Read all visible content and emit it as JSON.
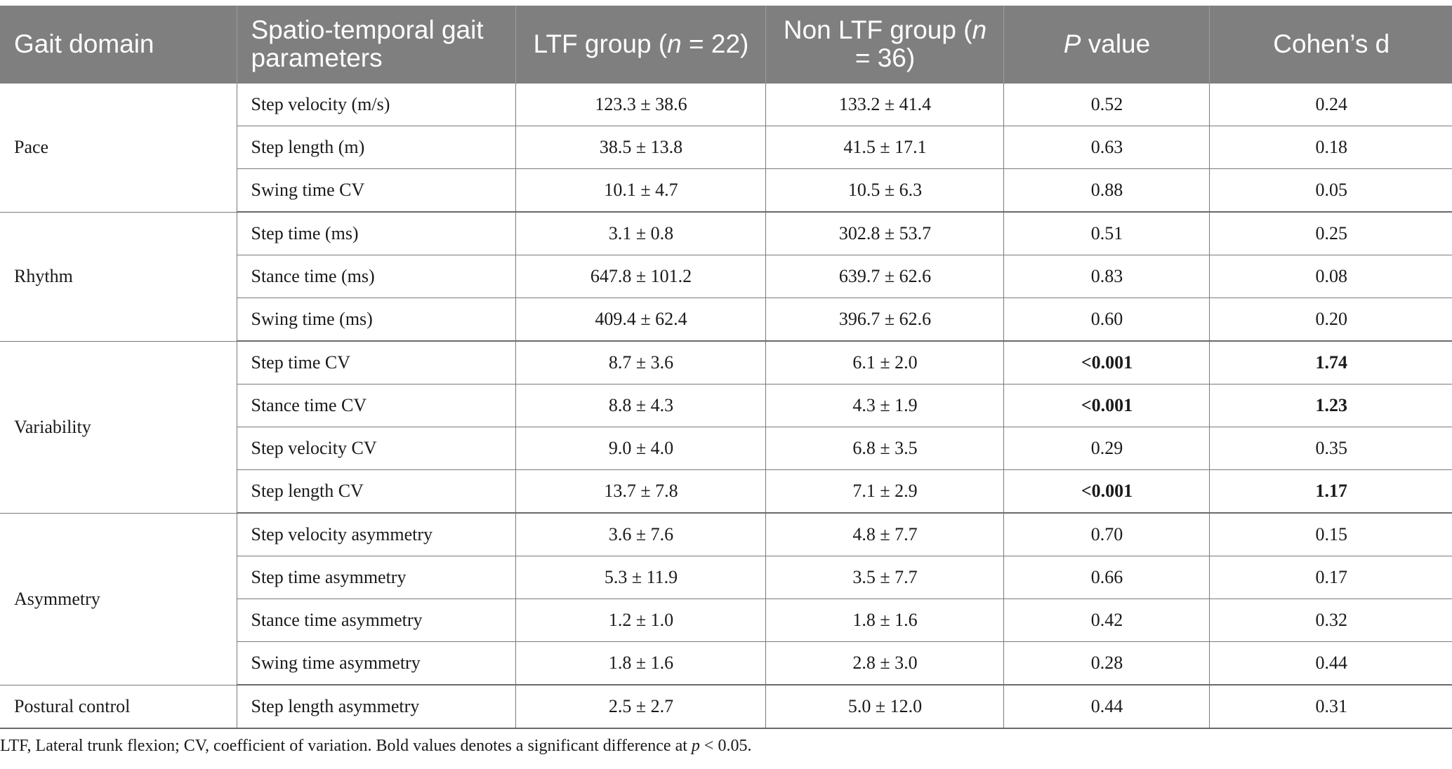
{
  "headers": {
    "domain": "Gait domain",
    "param": "Spatio-temporal gait parameters",
    "ltf_prefix": "LTF group (",
    "ltf_n": "n",
    "ltf_suffix": " = 22)",
    "non_prefix": "Non LTF group (",
    "non_n": "n",
    "non_suffix": " = 36)",
    "p_italic": "P",
    "p_rest": " value",
    "cohen": "Cohen’s d"
  },
  "domains": {
    "pace": "Pace",
    "rhythm": "Rhythm",
    "variability": "Variability",
    "asymmetry": "Asymmetry",
    "postural": "Postural control"
  },
  "rows": [
    {
      "param": "Step velocity (m/s)",
      "ltf": "123.3 ± 38.6",
      "non": "133.2 ± 41.4",
      "p": "0.52",
      "d": "0.24"
    },
    {
      "param": "Step length (m)",
      "ltf": "38.5 ± 13.8",
      "non": "41.5 ± 17.1",
      "p": "0.63",
      "d": "0.18"
    },
    {
      "param": "Swing time CV",
      "ltf": "10.1 ± 4.7",
      "non": "10.5 ± 6.3",
      "p": "0.88",
      "d": "0.05"
    },
    {
      "param": "Step time (ms)",
      "ltf": "3.1 ± 0.8",
      "non": "302.8 ± 53.7",
      "p": "0.51",
      "d": "0.25"
    },
    {
      "param": "Stance time (ms)",
      "ltf": "647.8 ± 101.2",
      "non": "639.7 ± 62.6",
      "p": "0.83",
      "d": "0.08"
    },
    {
      "param": "Swing time (ms)",
      "ltf": "409.4 ± 62.4",
      "non": "396.7 ± 62.6",
      "p": "0.60",
      "d": "0.20"
    },
    {
      "param": "Step time CV",
      "ltf": "8.7 ± 3.6",
      "non": "6.1 ± 2.0",
      "p": "<0.001",
      "d": "1.74"
    },
    {
      "param": "Stance time CV",
      "ltf": "8.8 ± 4.3",
      "non": "4.3 ± 1.9",
      "p": "<0.001",
      "d": "1.23"
    },
    {
      "param": "Step velocity CV",
      "ltf": "9.0 ± 4.0",
      "non": "6.8 ± 3.5",
      "p": "0.29",
      "d": "0.35"
    },
    {
      "param": "Step length CV",
      "ltf": "13.7 ± 7.8",
      "non": "7.1 ± 2.9",
      "p": "<0.001",
      "d": "1.17"
    },
    {
      "param": "Step velocity asymmetry",
      "ltf": "3.6 ± 7.6",
      "non": "4.8 ± 7.7",
      "p": "0.70",
      "d": "0.15"
    },
    {
      "param": "Step time asymmetry",
      "ltf": "5.3 ± 11.9",
      "non": "3.5 ± 7.7",
      "p": "0.66",
      "d": "0.17"
    },
    {
      "param": "Stance time asymmetry",
      "ltf": "1.2 ± 1.0",
      "non": "1.8 ± 1.6",
      "p": "0.42",
      "d": "0.32"
    },
    {
      "param": "Swing time asymmetry",
      "ltf": "1.8 ± 1.6",
      "non": "2.8 ± 3.0",
      "p": "0.28",
      "d": "0.44"
    },
    {
      "param": "Step length asymmetry",
      "ltf": "2.5 ± 2.7",
      "non": "5.0 ± 12.0",
      "p": "0.44",
      "d": "0.31"
    }
  ],
  "footnote": {
    "text": "LTF, Lateral trunk flexion; CV, coefficient of variation. Bold values denotes a significant difference at ",
    "p": "p",
    "tail": " < 0.05."
  },
  "colors": {
    "header_bg": "#7f7f7f",
    "header_text": "#ffffff",
    "grid": "#7a7a7a"
  }
}
